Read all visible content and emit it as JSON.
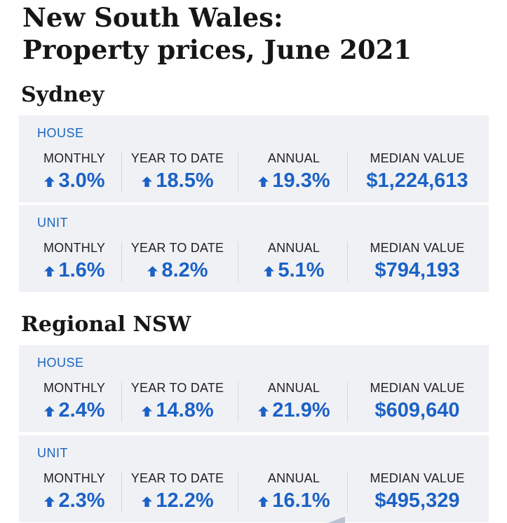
{
  "title": {
    "line1": "New South Wales:",
    "line2": "Property prices, June 2021"
  },
  "colors": {
    "accent": "#1b62c7",
    "card_background": "#f0f1f4",
    "heading": "#161616"
  },
  "icons": {
    "up": "arrow-up-icon"
  },
  "sections": [
    {
      "name": "Sydney",
      "cards": [
        {
          "label": "HOUSE",
          "metrics": [
            {
              "label": "MONTHLY",
              "value": "3.0%",
              "direction": "up"
            },
            {
              "label": "YEAR TO DATE",
              "value": "18.5%",
              "direction": "up"
            },
            {
              "label": "ANNUAL",
              "value": "19.3%",
              "direction": "up"
            },
            {
              "label": "MEDIAN VALUE",
              "value": "$1,224,613"
            }
          ]
        },
        {
          "label": "UNIT",
          "metrics": [
            {
              "label": "MONTHLY",
              "value": "1.6%",
              "direction": "up"
            },
            {
              "label": "YEAR TO DATE",
              "value": "8.2%",
              "direction": "up"
            },
            {
              "label": "ANNUAL",
              "value": "5.1%",
              "direction": "up"
            },
            {
              "label": "MEDIAN VALUE",
              "value": "$794,193"
            }
          ]
        }
      ]
    },
    {
      "name": "Regional NSW",
      "cards": [
        {
          "label": "HOUSE",
          "metrics": [
            {
              "label": "MONTHLY",
              "value": "2.4%",
              "direction": "up"
            },
            {
              "label": "YEAR TO DATE",
              "value": "14.8%",
              "direction": "up"
            },
            {
              "label": "ANNUAL",
              "value": "21.9%",
              "direction": "up"
            },
            {
              "label": "MEDIAN VALUE",
              "value": "$609,640"
            }
          ]
        },
        {
          "label": "UNIT",
          "metrics": [
            {
              "label": "MONTHLY",
              "value": "2.3%",
              "direction": "up"
            },
            {
              "label": "YEAR TO DATE",
              "value": "12.2%",
              "direction": "up"
            },
            {
              "label": "ANNUAL",
              "value": "16.1%",
              "direction": "up"
            },
            {
              "label": "MEDIAN VALUE",
              "value": "$495,329"
            }
          ]
        }
      ]
    }
  ]
}
